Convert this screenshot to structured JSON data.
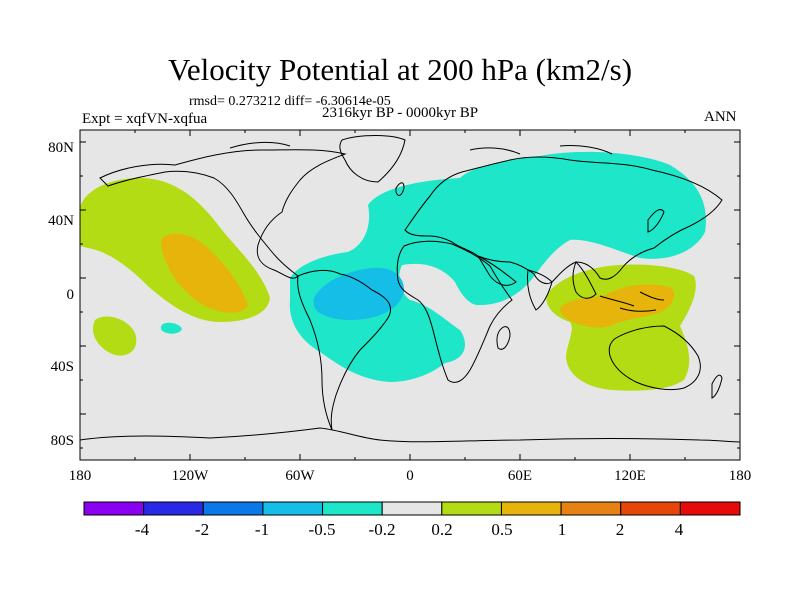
{
  "header": {
    "title": "Velocity Potential at 200 hPa (km2/s)",
    "stats": "rmsd= 0.273212 diff= -6.30614e-05",
    "experiment": "Expt = xqfVN-xqfua",
    "period": "2316kyr BP - 0000kyr BP",
    "season": "ANN"
  },
  "map": {
    "lat_labels": [
      "80N",
      "40N",
      "0",
      "40S",
      "80S"
    ],
    "lon_labels": [
      "180",
      "120W",
      "60W",
      "0",
      "60E",
      "120E",
      "180"
    ],
    "background_color": "#e6e6e6"
  },
  "colorbar": {
    "colors": [
      "#8a00f0",
      "#2828e6",
      "#0a78e6",
      "#14bee6",
      "#1ee6c8",
      "#e6e6e6",
      "#b4dc14",
      "#e6b40a",
      "#e68214",
      "#e6460a",
      "#e60a0a"
    ],
    "labels": [
      "-4",
      "-2",
      "-1",
      "-0.5",
      "-0.2",
      "0.2",
      "0.5",
      "1",
      "2",
      "4"
    ]
  },
  "regions": [
    {
      "level": "0.2",
      "color": "#b4dc14",
      "name": "north-pacific"
    },
    {
      "level": "0.5",
      "color": "#e6b40a",
      "name": "east-pacific"
    },
    {
      "level": "0.2",
      "color": "#b4dc14",
      "name": "south-pacific-blob"
    },
    {
      "level": "-0.2",
      "color": "#1ee6c8",
      "name": "atlantic-eurasia"
    },
    {
      "level": "-0.5",
      "color": "#14bee6",
      "name": "south-america"
    },
    {
      "level": "0.2",
      "color": "#b4dc14",
      "name": "indo-pacific"
    },
    {
      "level": "0.5",
      "color": "#e6b40a",
      "name": "maritime-continent"
    }
  ]
}
